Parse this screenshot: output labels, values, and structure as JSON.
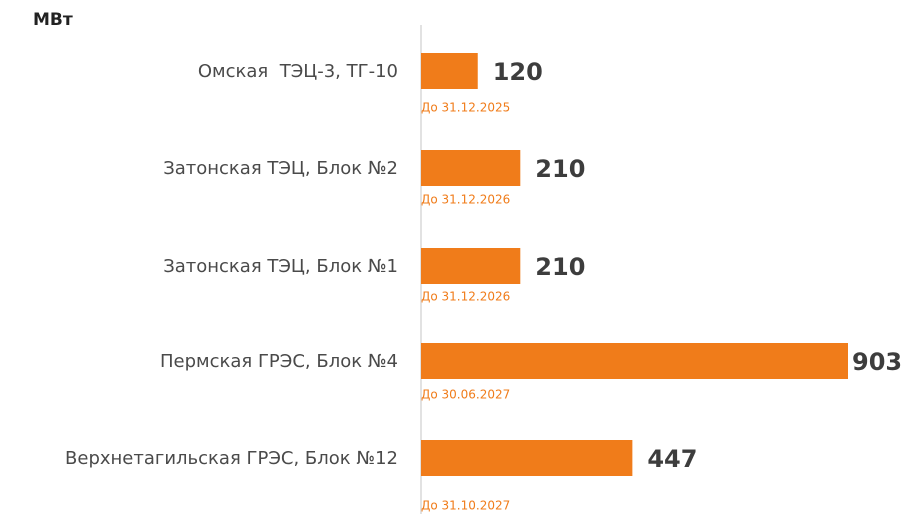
{
  "chart_data": {
    "type": "bar",
    "orientation": "horizontal",
    "unit_label": "МВт",
    "categories": [
      "Омская  ТЭЦ-3, ТГ-10",
      "Затонская ТЭЦ, Блок №2",
      "Затонская ТЭЦ, Блок №1",
      "Пермская ГРЭС, Блок №4",
      "Верхнетагильская ГРЭС, Блок №12"
    ],
    "values": [
      120,
      210,
      210,
      903,
      447
    ],
    "annotations": [
      "До 31.12.2025",
      "До 31.12.2026",
      "До 31.12.2026",
      "До 30.06.2027",
      "До 31.10.2027"
    ],
    "color": "#f07c1a"
  }
}
